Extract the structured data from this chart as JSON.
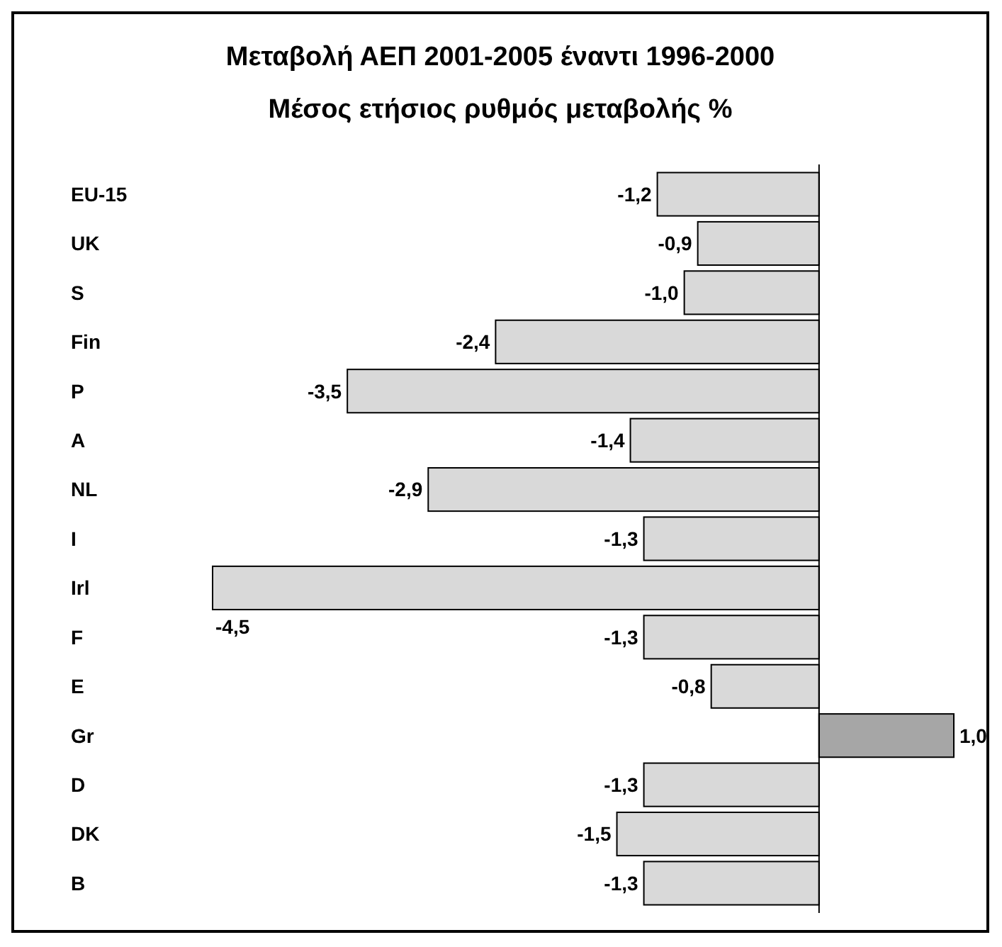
{
  "chart_data": {
    "type": "bar",
    "orientation": "horizontal",
    "title": "Μεταβολή ΑΕΠ 2001-2005 έναντι 1996-2000",
    "subtitle": "Μέσος ετήσιος ρυθμός μεταβολής %",
    "categories": [
      "EU-15",
      "UK",
      "S",
      "Fin",
      "P",
      "A",
      "NL",
      "I",
      "Irl",
      "F",
      "E",
      "Gr",
      "D",
      "DK",
      "B"
    ],
    "values": [
      -1.2,
      -0.9,
      -1.0,
      -2.4,
      -3.5,
      -1.4,
      -2.9,
      -1.3,
      -4.5,
      -1.3,
      -0.8,
      1.0,
      -1.3,
      -1.5,
      -1.3
    ],
    "colors": [
      "#d9d9d9",
      "#d9d9d9",
      "#d9d9d9",
      "#d9d9d9",
      "#d9d9d9",
      "#d9d9d9",
      "#d9d9d9",
      "#d9d9d9",
      "#d9d9d9",
      "#d9d9d9",
      "#d9d9d9",
      "#a6a6a6",
      "#d9d9d9",
      "#d9d9d9",
      "#d9d9d9"
    ],
    "value_labels": [
      "-1,2",
      "-0,9",
      "-1,0",
      "-2,4",
      "-3,5",
      "-1,4",
      "-2,9",
      "-1,3",
      "-4,5",
      "-1,3",
      "-0,8",
      "1,0",
      "-1,3",
      "-1,5",
      "-1,3"
    ]
  }
}
